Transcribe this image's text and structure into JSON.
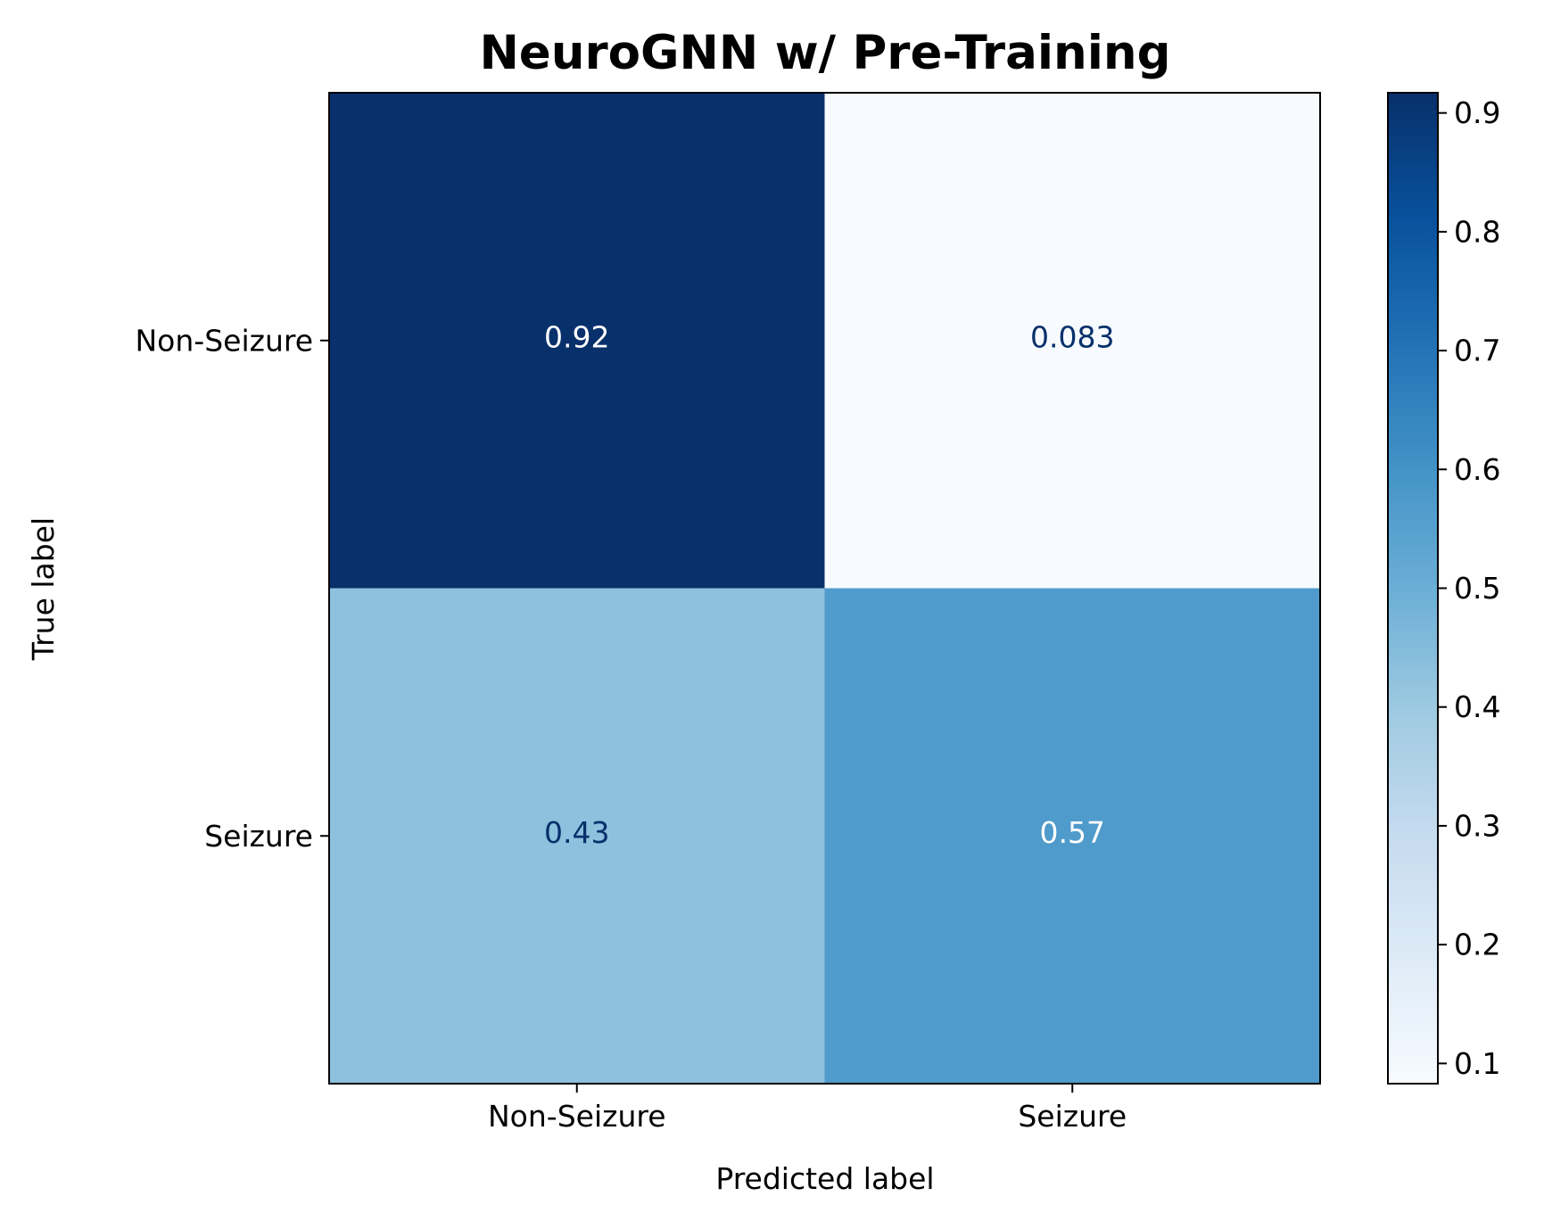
{
  "chart_data": {
    "type": "heatmap",
    "title": "NeuroGNN w/ Pre-Training",
    "xlabel": "Predicted label",
    "ylabel": "True label",
    "x_categories": [
      "Non-Seizure",
      "Seizure"
    ],
    "y_categories": [
      "Non-Seizure",
      "Seizure"
    ],
    "values": [
      [
        0.92,
        0.083
      ],
      [
        0.43,
        0.57
      ]
    ],
    "cell_labels": [
      [
        "0.92",
        "0.083"
      ],
      [
        "0.43",
        "0.57"
      ]
    ],
    "colormap": "Blues",
    "colorbar": {
      "vmin": 0.083,
      "vmax": 0.917,
      "ticks": [
        0.1,
        0.2,
        0.3,
        0.4,
        0.5,
        0.6,
        0.7,
        0.8,
        0.9
      ],
      "tick_labels": [
        "0.1",
        "0.2",
        "0.3",
        "0.4",
        "0.5",
        "0.6",
        "0.7",
        "0.8",
        "0.9"
      ]
    },
    "grid": false
  },
  "colors": {
    "text_dark": "#08306b",
    "text_light": "#ffffff",
    "axis": "#000000"
  }
}
